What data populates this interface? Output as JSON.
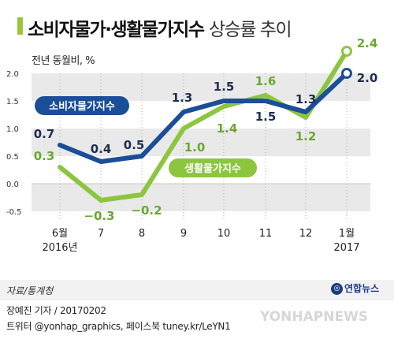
{
  "header": {
    "title_main": "소비자물가·생활물가지수",
    "title_sub": "상승률 추이"
  },
  "unit_label": "전년 동월비, %",
  "colors": {
    "cpi": "#1b4e98",
    "living": "#8cc63f",
    "band": "#e9e9e9",
    "label_cpi": "#1f2f4f",
    "label_living": "#6aa830"
  },
  "chart_data": {
    "type": "line",
    "title": "소비자물가·생활물가지수 상승률 추이",
    "ylabel": "전년 동월비, %",
    "xlabel": "",
    "categories": [
      "6월 2016년",
      "7",
      "8",
      "9",
      "10",
      "11",
      "12",
      "1월 2017"
    ],
    "x_tick_labels": [
      [
        "6월",
        "2016년"
      ],
      [
        "7"
      ],
      [
        "8"
      ],
      [
        "9"
      ],
      [
        "10"
      ],
      [
        "11"
      ],
      [
        "12"
      ],
      [
        "1월",
        "2017"
      ]
    ],
    "ylim": [
      -0.5,
      2.0
    ],
    "yticks": [
      2.0,
      1.5,
      1.0,
      0.5,
      0.0,
      -0.5
    ],
    "ytick_labels": [
      "2.0",
      "1.5",
      "1.0",
      "0.5",
      "0.0",
      "-0.5"
    ],
    "grid": "horizontal bands",
    "series": [
      {
        "name": "소비자물가지수",
        "key": "cpi",
        "values": [
          0.7,
          0.4,
          0.5,
          1.3,
          1.5,
          1.5,
          1.3,
          2.0
        ],
        "labels": [
          "0.7",
          "0.4",
          "0.5",
          "1.3",
          "1.5",
          "1.5",
          "1.3",
          "2.0"
        ]
      },
      {
        "name": "생활물가지수",
        "key": "living",
        "values": [
          0.3,
          -0.3,
          -0.2,
          1.0,
          1.4,
          1.6,
          1.2,
          2.4
        ],
        "labels": [
          "0.3",
          "−0.3",
          "−0.2",
          "1.0",
          "1.4",
          "1.6",
          "1.2",
          "2.4"
        ]
      }
    ]
  },
  "footer": {
    "source": "자료/통계청",
    "logo_text": "연합뉴스",
    "credit_line1": "장예진 기자 / 20170202",
    "credit_line2": "트위터 @yonhap_graphics, 페이스북 tuney.kr/LeYN1",
    "watermark": "YONHAPNEWS"
  }
}
